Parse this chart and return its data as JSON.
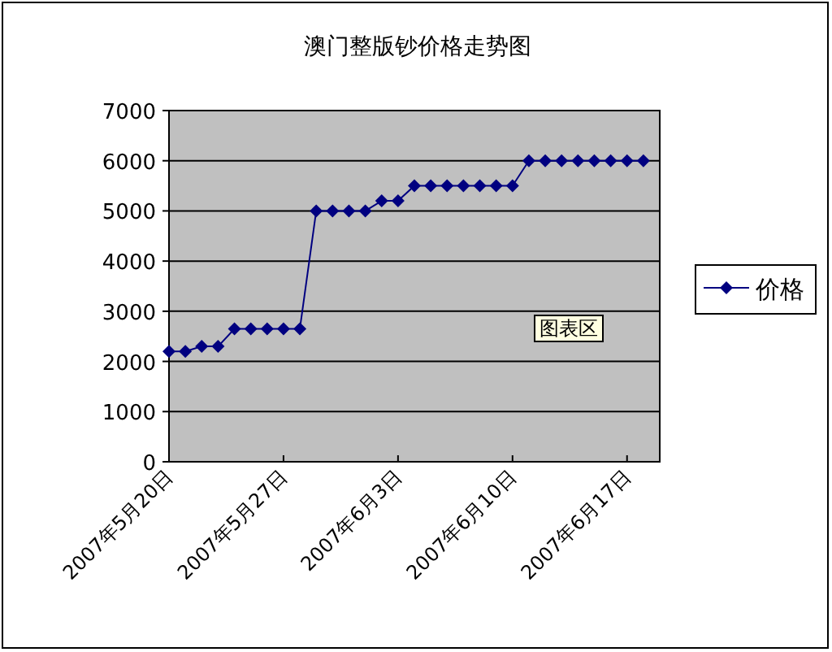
{
  "chart_data": {
    "type": "line",
    "title": "澳门整版钞价格走势图",
    "x": [
      "2007-05-20",
      "2007-05-21",
      "2007-05-22",
      "2007-05-23",
      "2007-05-24",
      "2007-05-25",
      "2007-05-26",
      "2007-05-27",
      "2007-05-28",
      "2007-05-29",
      "2007-05-30",
      "2007-05-31",
      "2007-06-01",
      "2007-06-02",
      "2007-06-03",
      "2007-06-04",
      "2007-06-05",
      "2007-06-06",
      "2007-06-07",
      "2007-06-08",
      "2007-06-09",
      "2007-06-10",
      "2007-06-11",
      "2007-06-12",
      "2007-06-13",
      "2007-06-14",
      "2007-06-15",
      "2007-06-16",
      "2007-06-17",
      "2007-06-18"
    ],
    "series": [
      {
        "name": "价格",
        "color": "#000080",
        "values": [
          2200,
          2200,
          2300,
          2300,
          2650,
          2650,
          2650,
          2650,
          2650,
          5000,
          5000,
          5000,
          5000,
          5200,
          5200,
          5500,
          5500,
          5500,
          5500,
          5500,
          5500,
          5500,
          6000,
          6000,
          6000,
          6000,
          6000,
          6000,
          6000,
          6000
        ]
      }
    ],
    "xlim": [
      "2007-05-20",
      "2007-06-19"
    ],
    "xticks": [
      {
        "value": "2007-05-20",
        "label": "2007年5月20日"
      },
      {
        "value": "2007-05-27",
        "label": "2007年5月27日"
      },
      {
        "value": "2007-06-03",
        "label": "2007年6月3日"
      },
      {
        "value": "2007-06-10",
        "label": "2007年6月10日"
      },
      {
        "value": "2007-06-17",
        "label": "2007年6月17日"
      }
    ],
    "ylim": [
      0,
      7000
    ],
    "yticks": [
      0,
      1000,
      2000,
      3000,
      4000,
      5000,
      6000,
      7000
    ],
    "grid": "y",
    "legend": "right",
    "marker": "diamond",
    "line_style": "solid",
    "annotations": [
      "图表区"
    ]
  }
}
